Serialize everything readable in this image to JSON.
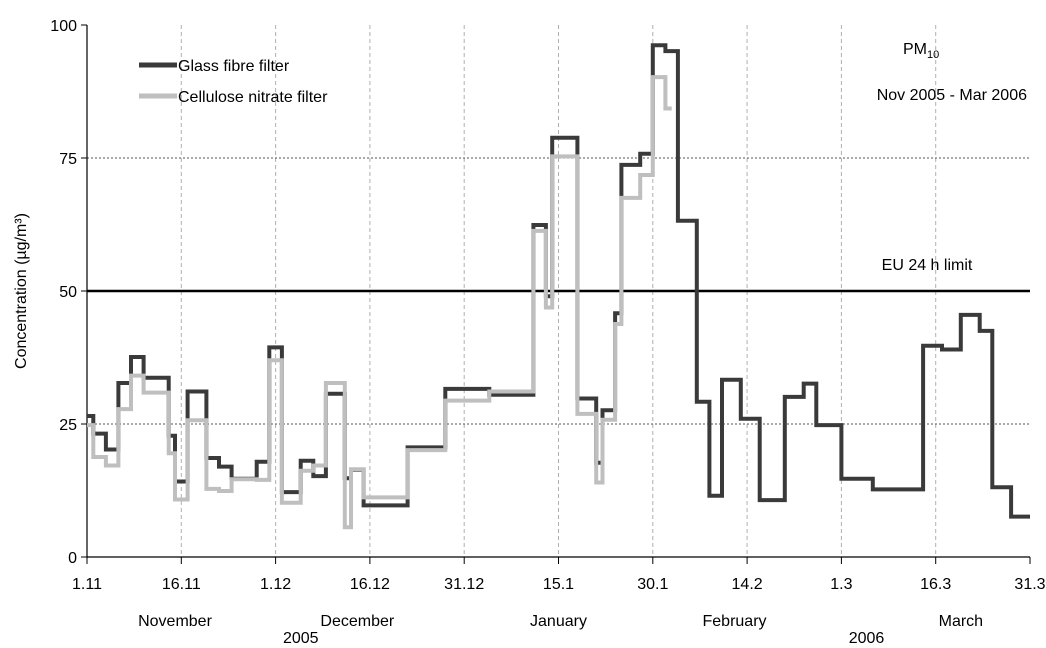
{
  "chart_data": {
    "type": "line",
    "title": "PM10",
    "title_main": "PM",
    "title_sub": "10",
    "subtitle": "Nov 2005 - Mar 2006",
    "ylabel": "Concentration (µg/m³)",
    "xlabel": "",
    "ylim": [
      0,
      100
    ],
    "xlim": [
      "2005-11-01",
      "2006-03-31"
    ],
    "y_ticks": [
      "0",
      "25",
      "50",
      "75",
      "100"
    ],
    "x_ticks": [
      {
        "date": "2005-11-01",
        "label": "1.11"
      },
      {
        "date": "2005-11-16",
        "label": "16.11"
      },
      {
        "date": "2005-12-01",
        "label": "1.12"
      },
      {
        "date": "2005-12-16",
        "label": "16.12"
      },
      {
        "date": "2005-12-31",
        "label": "31.12"
      },
      {
        "date": "2006-01-15",
        "label": "15.1"
      },
      {
        "date": "2006-01-30",
        "label": "30.1"
      },
      {
        "date": "2006-02-14",
        "label": "14.2"
      },
      {
        "date": "2006-03-01",
        "label": "1.3"
      },
      {
        "date": "2006-03-16",
        "label": "16.3"
      },
      {
        "date": "2006-03-31",
        "label": "31.3"
      }
    ],
    "month_labels": [
      {
        "label": "November",
        "date": "2005-11-15"
      },
      {
        "label": "December",
        "date": "2005-12-14"
      },
      {
        "label": "January",
        "date": "2006-01-15"
      },
      {
        "label": "February",
        "date": "2006-02-12"
      },
      {
        "label": "March",
        "date": "2006-03-20"
      }
    ],
    "year_labels": [
      {
        "label": "2005",
        "date": "2005-12-05"
      },
      {
        "label": "2006",
        "date": "2006-03-05"
      }
    ],
    "grid": {
      "vertical_dates": [
        "2005-12-31",
        "2006-01-30",
        "2006-03-01",
        "2005-11-16",
        "2005-12-01",
        "2005-12-16",
        "2006-01-15",
        "2006-02-14",
        "2006-03-16"
      ],
      "horizontal_values": [
        25,
        75
      ]
    },
    "reference_line": {
      "label": "EU 24 h limit",
      "value": 50
    },
    "legend_position": "top-left",
    "colors": {
      "glass": "#3a3a3a",
      "cellulose": "#bfbfbf",
      "limit": "#000000",
      "grid": "#b0b0b0"
    },
    "series": [
      {
        "name": "Glass fibre filter",
        "step": [
          [
            "2005-11-01",
            26.5
          ],
          [
            "2005-11-02",
            23.2
          ],
          [
            "2005-11-04",
            20.2
          ],
          [
            "2005-11-06",
            32.7
          ],
          [
            "2005-11-08",
            37.6
          ],
          [
            "2005-11-10",
            33.7
          ],
          [
            "2005-11-14",
            22.8
          ],
          [
            "2005-11-15",
            14.2
          ],
          [
            "2005-11-17",
            31.1
          ],
          [
            "2005-11-20",
            18.6
          ],
          [
            "2005-11-22",
            17.0
          ],
          [
            "2005-11-24",
            14.7
          ],
          [
            "2005-11-28",
            17.9
          ],
          [
            "2005-11-30",
            39.4
          ],
          [
            "2005-12-02",
            12.2
          ],
          [
            "2005-12-05",
            18.1
          ],
          [
            "2005-12-07",
            15.2
          ],
          [
            "2005-12-09",
            30.7
          ],
          [
            "2005-12-12",
            14.8
          ],
          [
            "2005-12-13",
            16.4
          ],
          [
            "2005-12-15",
            9.7
          ],
          [
            "2005-12-22",
            20.6
          ],
          [
            "2005-12-28",
            31.6
          ],
          [
            "2006-01-04",
            30.5
          ],
          [
            "2006-01-11",
            62.4
          ],
          [
            "2006-01-13",
            49.0
          ],
          [
            "2006-01-14",
            78.8
          ],
          [
            "2006-01-18",
            29.8
          ],
          [
            "2006-01-21",
            17.7
          ],
          [
            "2006-01-22",
            27.6
          ],
          [
            "2006-01-24",
            45.8
          ],
          [
            "2006-01-25",
            73.7
          ],
          [
            "2006-01-28",
            75.8
          ],
          [
            "2006-01-30",
            96.2
          ],
          [
            "2006-02-01",
            95.1
          ],
          [
            "2006-02-03",
            63.2
          ],
          [
            "2006-02-06",
            29.2
          ],
          [
            "2006-02-08",
            11.5
          ],
          [
            "2006-02-10",
            33.3
          ],
          [
            "2006-02-13",
            26.0
          ],
          [
            "2006-02-16",
            10.7
          ],
          [
            "2006-02-20",
            30.1
          ],
          [
            "2006-02-23",
            32.6
          ],
          [
            "2006-02-25",
            24.8
          ],
          [
            "2006-03-01",
            14.7
          ],
          [
            "2006-03-06",
            12.7
          ],
          [
            "2006-03-14",
            39.7
          ],
          [
            "2006-03-17",
            39.0
          ],
          [
            "2006-03-20",
            45.5
          ],
          [
            "2006-03-23",
            42.5
          ],
          [
            "2006-03-25",
            13.1
          ],
          [
            "2006-03-28",
            7.6
          ],
          [
            "2006-03-31",
            7.6
          ]
        ]
      },
      {
        "name": "Cellulose nitrate filter",
        "step": [
          [
            "2005-11-01",
            24.8
          ],
          [
            "2005-11-02",
            18.8
          ],
          [
            "2005-11-04",
            17.2
          ],
          [
            "2005-11-06",
            27.8
          ],
          [
            "2005-11-08",
            34.1
          ],
          [
            "2005-11-10",
            30.9
          ],
          [
            "2005-11-14",
            19.5
          ],
          [
            "2005-11-15",
            10.8
          ],
          [
            "2005-11-17",
            25.7
          ],
          [
            "2005-11-20",
            12.8
          ],
          [
            "2005-11-22",
            12.4
          ],
          [
            "2005-11-24",
            14.6
          ],
          [
            "2005-11-28",
            14.5
          ],
          [
            "2005-11-30",
            37.0
          ],
          [
            "2005-12-02",
            10.2
          ],
          [
            "2005-12-05",
            16.2
          ],
          [
            "2005-12-07",
            17.2
          ],
          [
            "2005-12-09",
            32.7
          ],
          [
            "2005-12-12",
            5.6
          ],
          [
            "2005-12-13",
            16.5
          ],
          [
            "2005-12-15",
            11.2
          ],
          [
            "2005-12-22",
            20.1
          ],
          [
            "2005-12-28",
            29.4
          ],
          [
            "2006-01-04",
            31.1
          ],
          [
            "2006-01-11",
            61.3
          ],
          [
            "2006-01-13",
            46.9
          ],
          [
            "2006-01-14",
            75.3
          ],
          [
            "2006-01-18",
            26.9
          ],
          [
            "2006-01-21",
            14.0
          ],
          [
            "2006-01-22",
            25.8
          ],
          [
            "2006-01-24",
            43.8
          ],
          [
            "2006-01-25",
            67.5
          ],
          [
            "2006-01-28",
            71.8
          ],
          [
            "2006-01-30",
            90.2
          ],
          [
            "2006-02-01",
            84.3
          ],
          [
            "2006-02-02",
            84.3
          ]
        ]
      }
    ]
  }
}
